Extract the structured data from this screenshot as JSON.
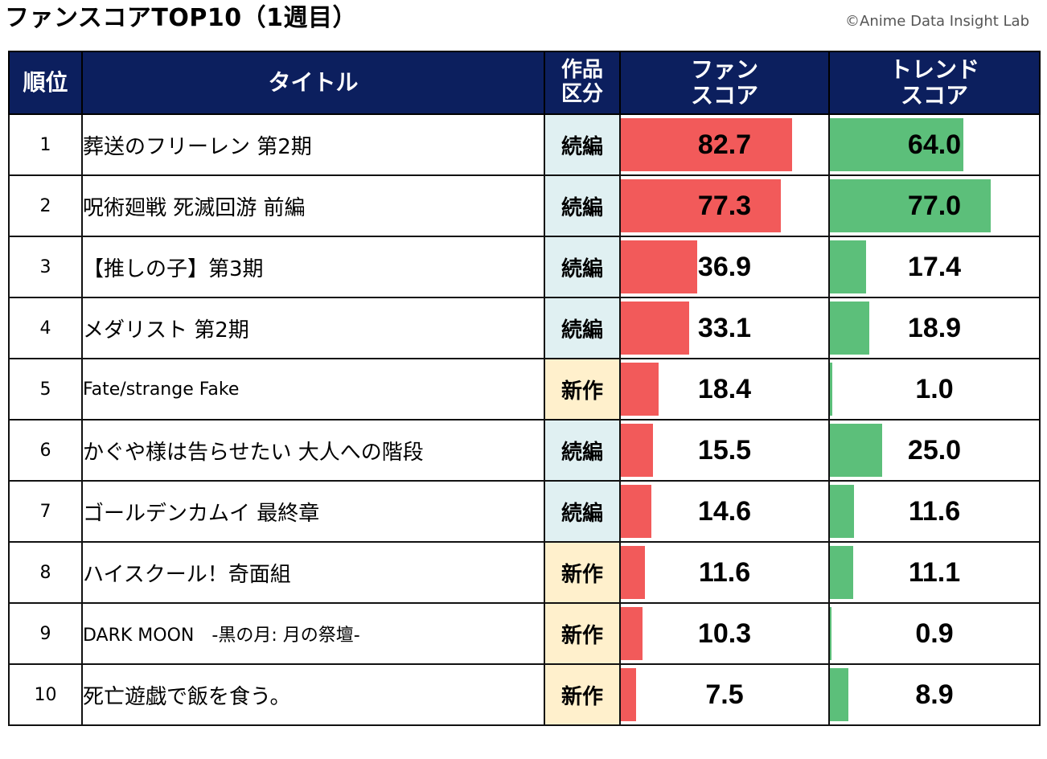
{
  "header": {
    "title": "ファンスコアTOP10（1週目）",
    "credit": "©Anime Data Insight Lab"
  },
  "columns": {
    "rank": "順位",
    "title": "タイトル",
    "category_line1": "作品",
    "category_line2": "区分",
    "fan_line1": "ファン",
    "fan_line2": "スコア",
    "trend_line1": "トレンド",
    "trend_line2": "スコア"
  },
  "colors": {
    "header_bg": "#0c1f5e",
    "fan_bar": "#f25a5a",
    "trend_bar": "#5cbf7a",
    "sequel_bg": "#e0f0f2",
    "new_bg": "#fff0cc"
  },
  "chart_data": {
    "type": "table",
    "bar_scale_max": 100,
    "rows": [
      {
        "rank": "1",
        "title": "葬送のフリーレン 第2期",
        "category": "続編",
        "fan_score": "82.7",
        "trend_score": "64.0"
      },
      {
        "rank": "2",
        "title": "呪術廻戦 死滅回游 前編",
        "category": "続編",
        "fan_score": "77.3",
        "trend_score": "77.0"
      },
      {
        "rank": "3",
        "title": "【推しの子】第3期",
        "category": "続編",
        "fan_score": "36.9",
        "trend_score": "17.4"
      },
      {
        "rank": "4",
        "title": "メダリスト 第2期",
        "category": "続編",
        "fan_score": "33.1",
        "trend_score": "18.9"
      },
      {
        "rank": "5",
        "title": "Fate/strange Fake",
        "category": "新作",
        "fan_score": "18.4",
        "trend_score": "1.0"
      },
      {
        "rank": "6",
        "title": "かぐや様は告らせたい 大人への階段",
        "category": "続編",
        "fan_score": "15.5",
        "trend_score": "25.0"
      },
      {
        "rank": "7",
        "title": "ゴールデンカムイ 最終章",
        "category": "続編",
        "fan_score": "14.6",
        "trend_score": "11.6"
      },
      {
        "rank": "8",
        "title": "ハイスクール！奇面組",
        "category": "新作",
        "fan_score": "11.6",
        "trend_score": "11.1"
      },
      {
        "rank": "9",
        "title": "DARK MOON　-黒の月: 月の祭壇-",
        "category": "新作",
        "fan_score": "10.3",
        "trend_score": "0.9"
      },
      {
        "rank": "10",
        "title": "死亡遊戯で飯を食う。",
        "category": "新作",
        "fan_score": "7.5",
        "trend_score": "8.9"
      }
    ]
  }
}
